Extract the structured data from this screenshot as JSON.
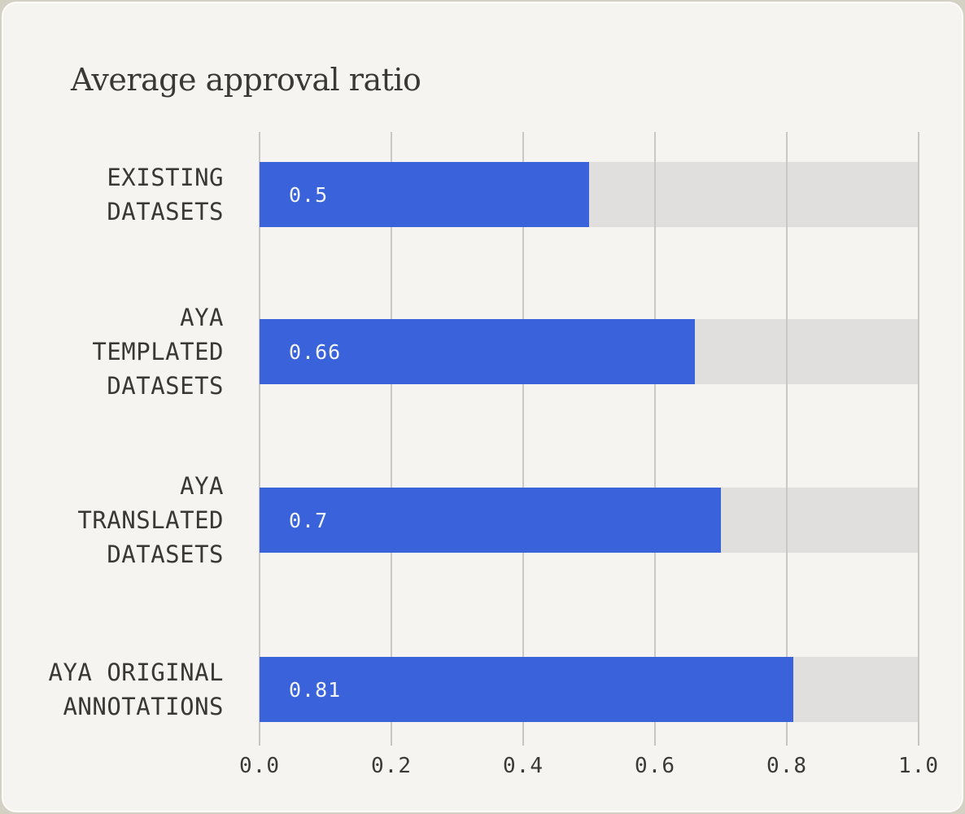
{
  "chart_data": {
    "type": "bar",
    "orientation": "horizontal",
    "title": "Average approval ratio",
    "categories": [
      "EXISTING DATASETS",
      "AYA TEMPLATED DATASETS",
      "AYA TRANSLATED DATASETS",
      "AYA ORIGINAL ANNOTATIONS"
    ],
    "category_label_lines": [
      [
        "EXISTING",
        "DATASETS"
      ],
      [
        "AYA",
        "TEMPLATED",
        "DATASETS"
      ],
      [
        "AYA",
        "TRANSLATED",
        "DATASETS"
      ],
      [
        "AYA ORIGINAL",
        "ANNOTATIONS"
      ]
    ],
    "values": [
      0.5,
      0.66,
      0.7,
      0.81
    ],
    "value_labels": [
      "0.5",
      "0.66",
      "0.7",
      "0.81"
    ],
    "xlim": [
      0,
      1
    ],
    "x_ticks": [
      {
        "value": 0.0,
        "label": "0.0"
      },
      {
        "value": 0.2,
        "label": "0.2"
      },
      {
        "value": 0.4,
        "label": "0.4"
      },
      {
        "value": 0.6,
        "label": "0.6"
      },
      {
        "value": 0.8,
        "label": "0.8"
      },
      {
        "value": 1.0,
        "label": "1.0"
      }
    ],
    "grid": true,
    "legend": null,
    "colors": {
      "bar": "#3a62da",
      "bar_track": "#e0dfdd",
      "gridline": "#c9c8c4",
      "tick": "#c6c5c1",
      "value_text": "#f3f5fc",
      "category_text": "#3a3835",
      "axis_text": "#3b3936",
      "title_text": "#3b3936",
      "card_background": "#f5f4f1",
      "outer_background": "#d3d1c3"
    }
  }
}
